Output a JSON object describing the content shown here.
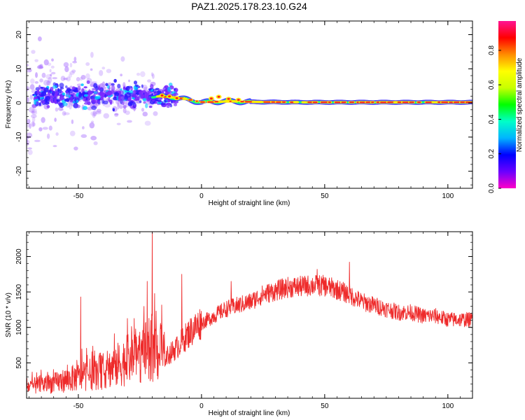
{
  "title": "PAZ1.2025.178.23.10.G24",
  "colors": {
    "snr_line": "#ee2a2a",
    "ridge_core": "#ff1f1f",
    "ridge_mid": "#ffee00",
    "ridge_edge": "#00e5cc",
    "scatter_low": "#b07cff",
    "scatter_high": "#3b2bff"
  },
  "chart_data": [
    {
      "type": "heatmap",
      "xlabel": "Height of straight line (km)",
      "ylabel": "Frequency (Hz)",
      "xlim": [
        -71,
        110
      ],
      "ylim": [
        -25,
        24
      ],
      "xticks": [
        -50,
        0,
        50,
        100
      ],
      "yticks": [
        -20,
        -10,
        0,
        10,
        20
      ],
      "grid": false,
      "colorbar": {
        "label": "Normalized spectral amplitude",
        "range": [
          0,
          0.97
        ],
        "ticks": [
          0.0,
          0.2,
          0.4,
          0.6,
          0.8
        ],
        "colormap": [
          "#ff00c8",
          "#6a00ff",
          "#0000ff",
          "#00b4ff",
          "#00ffc8",
          "#00ff00",
          "#c8ff00",
          "#ffff00",
          "#ff8c00",
          "#ff0000",
          "#ff1493"
        ]
      },
      "ridge": {
        "description_x": [
          -20,
          -10,
          0,
          10,
          20,
          40,
          60,
          80,
          100,
          110
        ],
        "frequency_center": [
          2.0,
          1.5,
          0.2,
          0.5,
          0.3,
          0.2,
          0.2,
          0.2,
          0.2,
          0.2
        ],
        "peak_amplitude": [
          0.45,
          0.6,
          0.9,
          0.85,
          0.9,
          0.92,
          0.95,
          0.93,
          0.9,
          0.88
        ]
      },
      "scatter_region": {
        "x_range": [
          -71,
          -18
        ],
        "frequency_range": [
          -25,
          24
        ]
      }
    },
    {
      "type": "line",
      "xlabel": "Height of straight line (km)",
      "ylabel": "SNR (10 * v/v)",
      "xlim": [
        -71,
        110
      ],
      "ylim": [
        0,
        2350
      ],
      "xticks": [
        -50,
        0,
        50,
        100
      ],
      "yticks": [
        500,
        1000,
        1500,
        2000
      ],
      "grid": false,
      "series": [
        {
          "envelope_x": [
            -71,
            -60,
            -50,
            -40,
            -30,
            -20,
            -15,
            -10,
            -5,
            0,
            5,
            10,
            15,
            20,
            25,
            30,
            35,
            40,
            45,
            50,
            55,
            60,
            65,
            70,
            75,
            80,
            85,
            90,
            95,
            100,
            105,
            110
          ],
          "values": [
            150,
            200,
            280,
            350,
            500,
            650,
            550,
            700,
            900,
            1050,
            1150,
            1250,
            1300,
            1350,
            1450,
            1500,
            1550,
            1560,
            1580,
            1570,
            1520,
            1450,
            1350,
            1300,
            1250,
            1200,
            1200,
            1150,
            1150,
            1100,
            1100,
            1100
          ]
        }
      ],
      "spikes": [
        {
          "x": -20,
          "y": 2350
        },
        {
          "x": -22,
          "y": 1650
        },
        {
          "x": 12,
          "y": 1650
        },
        {
          "x": 47,
          "y": 1820
        },
        {
          "x": 60,
          "y": 1920
        },
        {
          "x": -49,
          "y": 1430
        },
        {
          "x": -8,
          "y": 1750
        }
      ]
    }
  ]
}
